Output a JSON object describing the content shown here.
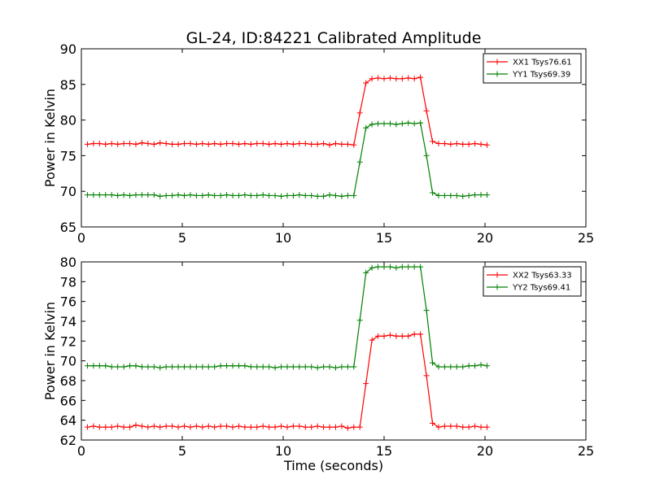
{
  "figure": {
    "title": "GL-24, ID:84221 Calibrated Amplitude",
    "xlabel": "Time (seconds)"
  },
  "colors": {
    "red": "#ff0000",
    "green": "#008000",
    "background": "#ffffff",
    "axes": "#000000"
  },
  "chart_data": [
    {
      "type": "line",
      "ylabel": "Power in Kelvin",
      "xlim": [
        0,
        25
      ],
      "ylim": [
        65,
        90
      ],
      "xticks": [
        0,
        5,
        10,
        15,
        20,
        25
      ],
      "yticks": [
        65,
        70,
        75,
        80,
        85,
        90
      ],
      "grid": false,
      "legend_position": "top-right",
      "marker": "plus",
      "x": [
        0.3,
        0.6,
        0.9,
        1.2,
        1.5,
        1.8,
        2.1,
        2.4,
        2.7,
        3.0,
        3.3,
        3.6,
        3.9,
        4.2,
        4.5,
        4.8,
        5.1,
        5.4,
        5.7,
        6.0,
        6.3,
        6.6,
        6.9,
        7.2,
        7.5,
        7.8,
        8.1,
        8.4,
        8.7,
        9.0,
        9.3,
        9.6,
        9.9,
        10.2,
        10.5,
        10.8,
        11.1,
        11.4,
        11.7,
        12.0,
        12.3,
        12.6,
        12.9,
        13.2,
        13.5,
        13.8,
        14.1,
        14.4,
        14.7,
        15.0,
        15.3,
        15.6,
        15.9,
        16.2,
        16.5,
        16.8,
        17.1,
        17.4,
        17.7,
        18.0,
        18.3,
        18.6,
        18.9,
        19.2,
        19.5,
        19.8,
        20.1
      ],
      "series": [
        {
          "name": "XX1 Tsys76.61",
          "color": "#ff0000",
          "values": [
            76.6,
            76.7,
            76.7,
            76.6,
            76.7,
            76.6,
            76.7,
            76.7,
            76.6,
            76.8,
            76.7,
            76.6,
            76.8,
            76.7,
            76.6,
            76.6,
            76.7,
            76.7,
            76.6,
            76.7,
            76.6,
            76.7,
            76.6,
            76.7,
            76.7,
            76.6,
            76.7,
            76.6,
            76.7,
            76.7,
            76.6,
            76.7,
            76.6,
            76.7,
            76.6,
            76.7,
            76.7,
            76.6,
            76.6,
            76.7,
            76.5,
            76.7,
            76.6,
            76.6,
            76.5,
            81.0,
            85.2,
            85.8,
            85.9,
            85.8,
            85.9,
            85.8,
            85.8,
            85.9,
            85.8,
            86.0,
            81.3,
            77.0,
            76.7,
            76.7,
            76.6,
            76.7,
            76.6,
            76.6,
            76.7,
            76.6,
            76.5
          ]
        },
        {
          "name": "YY1 Tsys69.39",
          "color": "#008000",
          "values": [
            69.5,
            69.5,
            69.5,
            69.5,
            69.5,
            69.4,
            69.5,
            69.4,
            69.5,
            69.5,
            69.5,
            69.5,
            69.3,
            69.4,
            69.4,
            69.5,
            69.4,
            69.5,
            69.4,
            69.4,
            69.5,
            69.4,
            69.4,
            69.5,
            69.4,
            69.4,
            69.5,
            69.4,
            69.4,
            69.5,
            69.4,
            69.4,
            69.3,
            69.4,
            69.4,
            69.5,
            69.4,
            69.4,
            69.3,
            69.3,
            69.5,
            69.4,
            69.3,
            69.4,
            69.4,
            74.1,
            78.9,
            79.4,
            79.5,
            79.5,
            79.5,
            79.4,
            79.5,
            79.6,
            79.5,
            79.6,
            75.0,
            69.8,
            69.4,
            69.4,
            69.4,
            69.4,
            69.3,
            69.4,
            69.5,
            69.5,
            69.5
          ]
        }
      ]
    },
    {
      "type": "line",
      "ylabel": "Power in Kelvin",
      "xlabel": "Time (seconds)",
      "xlim": [
        0,
        25
      ],
      "ylim": [
        62,
        80
      ],
      "xticks": [
        0,
        5,
        10,
        15,
        20,
        25
      ],
      "yticks": [
        62,
        64,
        66,
        68,
        70,
        72,
        74,
        76,
        78,
        80
      ],
      "grid": false,
      "legend_position": "top-right",
      "marker": "plus",
      "x": [
        0.3,
        0.6,
        0.9,
        1.2,
        1.5,
        1.8,
        2.1,
        2.4,
        2.7,
        3.0,
        3.3,
        3.6,
        3.9,
        4.2,
        4.5,
        4.8,
        5.1,
        5.4,
        5.7,
        6.0,
        6.3,
        6.6,
        6.9,
        7.2,
        7.5,
        7.8,
        8.1,
        8.4,
        8.7,
        9.0,
        9.3,
        9.6,
        9.9,
        10.2,
        10.5,
        10.8,
        11.1,
        11.4,
        11.7,
        12.0,
        12.3,
        12.6,
        12.9,
        13.2,
        13.5,
        13.8,
        14.1,
        14.4,
        14.7,
        15.0,
        15.3,
        15.6,
        15.9,
        16.2,
        16.5,
        16.8,
        17.1,
        17.4,
        17.7,
        18.0,
        18.3,
        18.6,
        18.9,
        19.2,
        19.5,
        19.8,
        20.1
      ],
      "series": [
        {
          "name": "XX2 Tsys63.33",
          "color": "#ff0000",
          "values": [
            63.3,
            63.4,
            63.3,
            63.3,
            63.3,
            63.4,
            63.3,
            63.3,
            63.5,
            63.4,
            63.3,
            63.4,
            63.3,
            63.4,
            63.4,
            63.3,
            63.4,
            63.3,
            63.4,
            63.3,
            63.4,
            63.3,
            63.4,
            63.4,
            63.3,
            63.4,
            63.3,
            63.3,
            63.3,
            63.4,
            63.3,
            63.3,
            63.4,
            63.3,
            63.4,
            63.4,
            63.3,
            63.3,
            63.4,
            63.3,
            63.3,
            63.3,
            63.4,
            63.2,
            63.3,
            63.3,
            67.7,
            72.1,
            72.5,
            72.5,
            72.6,
            72.5,
            72.5,
            72.5,
            72.7,
            72.7,
            68.5,
            63.7,
            63.3,
            63.4,
            63.4,
            63.4,
            63.3,
            63.3,
            63.4,
            63.3,
            63.3
          ]
        },
        {
          "name": "YY2 Tsys69.41",
          "color": "#008000",
          "values": [
            69.5,
            69.5,
            69.5,
            69.5,
            69.4,
            69.4,
            69.4,
            69.5,
            69.5,
            69.4,
            69.4,
            69.4,
            69.3,
            69.4,
            69.4,
            69.4,
            69.4,
            69.4,
            69.4,
            69.4,
            69.4,
            69.4,
            69.5,
            69.5,
            69.5,
            69.5,
            69.5,
            69.4,
            69.4,
            69.4,
            69.4,
            69.3,
            69.4,
            69.4,
            69.4,
            69.4,
            69.4,
            69.4,
            69.3,
            69.4,
            69.4,
            69.3,
            69.4,
            69.4,
            69.4,
            74.1,
            78.9,
            79.4,
            79.5,
            79.5,
            79.5,
            79.4,
            79.5,
            79.5,
            79.5,
            79.5,
            75.1,
            69.8,
            69.4,
            69.4,
            69.4,
            69.4,
            69.4,
            69.5,
            69.5,
            69.6,
            69.5
          ]
        }
      ]
    }
  ]
}
